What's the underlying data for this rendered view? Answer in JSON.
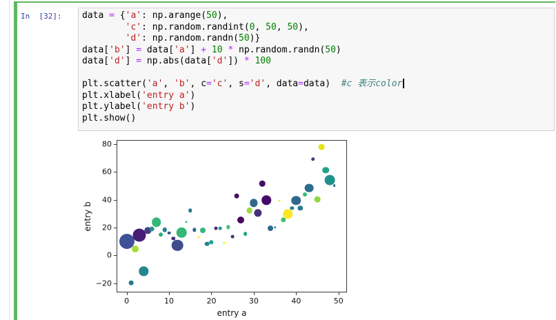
{
  "cell": {
    "prompt": "In  [32]:",
    "prompt_color": "#303F9F",
    "edit_mode_border_color": "#5cb85c",
    "input_background": "#f7f7f7",
    "input_border": "#cfcfcf"
  },
  "code": {
    "token_colors": {
      "plain": "#000000",
      "string": "#BA2121",
      "number": "#008000",
      "operator": "#AA22FF",
      "comment": "#408080"
    },
    "cursor_line": 6,
    "lines": [
      [
        [
          "p",
          "data "
        ],
        [
          "o",
          "="
        ],
        [
          "p",
          " {"
        ],
        [
          "s",
          "'a'"
        ],
        [
          "p",
          ": np.arange("
        ],
        [
          "n",
          "50"
        ],
        [
          "p",
          "),"
        ]
      ],
      [
        [
          "p",
          "        "
        ],
        [
          "s",
          "'c'"
        ],
        [
          "p",
          ": np.random.randint("
        ],
        [
          "n",
          "0"
        ],
        [
          "p",
          ", "
        ],
        [
          "n",
          "50"
        ],
        [
          "p",
          ", "
        ],
        [
          "n",
          "50"
        ],
        [
          "p",
          "),"
        ]
      ],
      [
        [
          "p",
          "        "
        ],
        [
          "s",
          "'d'"
        ],
        [
          "p",
          ": np.random.randn("
        ],
        [
          "n",
          "50"
        ],
        [
          "p",
          ")}"
        ]
      ],
      [
        [
          "p",
          "data["
        ],
        [
          "s",
          "'b'"
        ],
        [
          "p",
          "] "
        ],
        [
          "o",
          "="
        ],
        [
          "p",
          " data["
        ],
        [
          "s",
          "'a'"
        ],
        [
          "p",
          "] "
        ],
        [
          "o",
          "+"
        ],
        [
          "p",
          " "
        ],
        [
          "n",
          "10"
        ],
        [
          "p",
          " "
        ],
        [
          "o",
          "*"
        ],
        [
          "p",
          " np.random.randn("
        ],
        [
          "n",
          "50"
        ],
        [
          "p",
          ")"
        ]
      ],
      [
        [
          "p",
          "data["
        ],
        [
          "s",
          "'d'"
        ],
        [
          "p",
          "] "
        ],
        [
          "o",
          "="
        ],
        [
          "p",
          " np.abs(data["
        ],
        [
          "s",
          "'d'"
        ],
        [
          "p",
          "]) "
        ],
        [
          "o",
          "*"
        ],
        [
          "p",
          " "
        ],
        [
          "n",
          "100"
        ]
      ],
      [],
      [
        [
          "p",
          "plt.scatter("
        ],
        [
          "s",
          "'a'"
        ],
        [
          "p",
          ", "
        ],
        [
          "s",
          "'b'"
        ],
        [
          "p",
          ", c"
        ],
        [
          "o",
          "="
        ],
        [
          "s",
          "'c'"
        ],
        [
          "p",
          ", s"
        ],
        [
          "o",
          "="
        ],
        [
          "s",
          "'d'"
        ],
        [
          "p",
          ", data"
        ],
        [
          "o",
          "="
        ],
        [
          "p",
          "data)  "
        ],
        [
          "c",
          "#c 表示color"
        ]
      ],
      [
        [
          "p",
          "plt.xlabel("
        ],
        [
          "s",
          "'entry a'"
        ],
        [
          "p",
          ")"
        ]
      ],
      [
        [
          "p",
          "plt.ylabel("
        ],
        [
          "s",
          "'entry b'"
        ],
        [
          "p",
          ")"
        ]
      ],
      [
        [
          "p",
          "plt.show()"
        ]
      ]
    ]
  },
  "chart_data": {
    "type": "scatter",
    "title": "",
    "xlabel": "entry a",
    "ylabel": "entry b",
    "xlim": [
      -2.22,
      51.83
    ],
    "ylim": [
      -25.95,
      82.27
    ],
    "xticks": [
      0,
      10,
      20,
      30,
      40,
      50
    ],
    "yticks": [
      -20,
      0,
      20,
      40,
      60,
      80
    ],
    "ytick_labels": [
      "−20",
      "0",
      "20",
      "40",
      "60",
      "80"
    ],
    "grid": false,
    "legend": false,
    "colormap": "viridis",
    "size_note": "r is marker radius in px; color encodes c, size encodes d",
    "points": [
      {
        "x": 0,
        "y": 9.9,
        "r": 11,
        "c": "#3f5198"
      },
      {
        "x": 1,
        "y": -19.5,
        "r": 3.4,
        "c": "#2a788e"
      },
      {
        "x": 2,
        "y": 4.5,
        "r": 5,
        "c": "#a5db36"
      },
      {
        "x": 3,
        "y": 14.8,
        "r": 9.5,
        "c": "#471c73"
      },
      {
        "x": 4,
        "y": -11.3,
        "r": 6.7,
        "c": "#24868e"
      },
      {
        "x": 5,
        "y": 17.9,
        "r": 4.7,
        "c": "#433e85"
      },
      {
        "x": 6,
        "y": 19.0,
        "r": 3.5,
        "c": "#21918c"
      },
      {
        "x": 7,
        "y": 23.8,
        "r": 6.8,
        "c": "#35b779"
      },
      {
        "x": 8,
        "y": 15.2,
        "r": 2.9,
        "c": "#2ab07f"
      },
      {
        "x": 9,
        "y": 18.4,
        "r": 3.2,
        "c": "#26828e"
      },
      {
        "x": 10,
        "y": 16.2,
        "r": 2.3,
        "c": "#39568c"
      },
      {
        "x": 11,
        "y": 12.3,
        "r": 2.7,
        "c": "#46327e"
      },
      {
        "x": 12,
        "y": 7.4,
        "r": 8.3,
        "c": "#3d4e8a"
      },
      {
        "x": 13,
        "y": 16.4,
        "r": 7.3,
        "c": "#35b779"
      },
      {
        "x": 14,
        "y": 24.2,
        "r": 1.6,
        "c": "#44bf70"
      },
      {
        "x": 15,
        "y": 32.2,
        "r": 2.8,
        "c": "#2a788e"
      },
      {
        "x": 16,
        "y": 18.3,
        "r": 2.7,
        "c": "#31688e"
      },
      {
        "x": 17,
        "y": 13.2,
        "r": 1.6,
        "c": "#fde725"
      },
      {
        "x": 18,
        "y": 18.0,
        "r": 4.0,
        "c": "#35b779"
      },
      {
        "x": 19,
        "y": 8.3,
        "r": 3.4,
        "c": "#26828e"
      },
      {
        "x": 20,
        "y": 9.5,
        "r": 2.8,
        "c": "#1fa187"
      },
      {
        "x": 21,
        "y": 19.4,
        "r": 2.5,
        "c": "#482878"
      },
      {
        "x": 22,
        "y": 19.3,
        "r": 2.4,
        "c": "#1f988b"
      },
      {
        "x": 23,
        "y": 9.0,
        "r": 1.5,
        "c": "#fde725"
      },
      {
        "x": 24,
        "y": 20.4,
        "r": 2.7,
        "c": "#44bf70"
      },
      {
        "x": 25,
        "y": 13.5,
        "r": 2.4,
        "c": "#46327e"
      },
      {
        "x": 26,
        "y": 42.8,
        "r": 3.4,
        "c": "#471063"
      },
      {
        "x": 27,
        "y": 25.2,
        "r": 5.0,
        "c": "#46085c"
      },
      {
        "x": 28,
        "y": 15.5,
        "r": 2.9,
        "c": "#21a585"
      },
      {
        "x": 29,
        "y": 32.4,
        "r": 4.3,
        "c": "#9bd93c"
      },
      {
        "x": 30,
        "y": 37.7,
        "r": 5.7,
        "c": "#31688e"
      },
      {
        "x": 31,
        "y": 30.4,
        "r": 5.7,
        "c": "#472d7b"
      },
      {
        "x": 32,
        "y": 51.5,
        "r": 4.3,
        "c": "#450d67"
      },
      {
        "x": 33,
        "y": 39.6,
        "r": 6.8,
        "c": "#440a68"
      },
      {
        "x": 34,
        "y": 19.3,
        "r": 4.0,
        "c": "#31688e"
      },
      {
        "x": 35,
        "y": 20.1,
        "r": 1.8,
        "c": "#1f988b"
      },
      {
        "x": 36,
        "y": 39.4,
        "r": 1.5,
        "c": "#fde725"
      },
      {
        "x": 37,
        "y": 25.5,
        "r": 3.7,
        "c": "#44bf70"
      },
      {
        "x": 38,
        "y": 29.8,
        "r": 6.8,
        "c": "#fde725"
      },
      {
        "x": 39,
        "y": 33.9,
        "r": 2.7,
        "c": "#277f8e"
      },
      {
        "x": 40,
        "y": 39.4,
        "r": 6.8,
        "c": "#31688e"
      },
      {
        "x": 41,
        "y": 33.9,
        "r": 3.7,
        "c": "#287d8e"
      },
      {
        "x": 42,
        "y": 43.9,
        "r": 3.0,
        "c": "#35b779"
      },
      {
        "x": 43,
        "y": 48.4,
        "r": 6.4,
        "c": "#2e6d8e"
      },
      {
        "x": 44,
        "y": 69.0,
        "r": 2.8,
        "c": "#443983"
      },
      {
        "x": 45,
        "y": 40.3,
        "r": 4.4,
        "c": "#90d743"
      },
      {
        "x": 46,
        "y": 77.8,
        "r": 4.4,
        "c": "#e5e419"
      },
      {
        "x": 47,
        "y": 61.2,
        "r": 4.8,
        "c": "#20a386"
      },
      {
        "x": 48,
        "y": 54.2,
        "r": 7.4,
        "c": "#21918c"
      },
      {
        "x": 49,
        "y": 50.0,
        "r": 1.9,
        "c": "#355f8d"
      }
    ]
  }
}
